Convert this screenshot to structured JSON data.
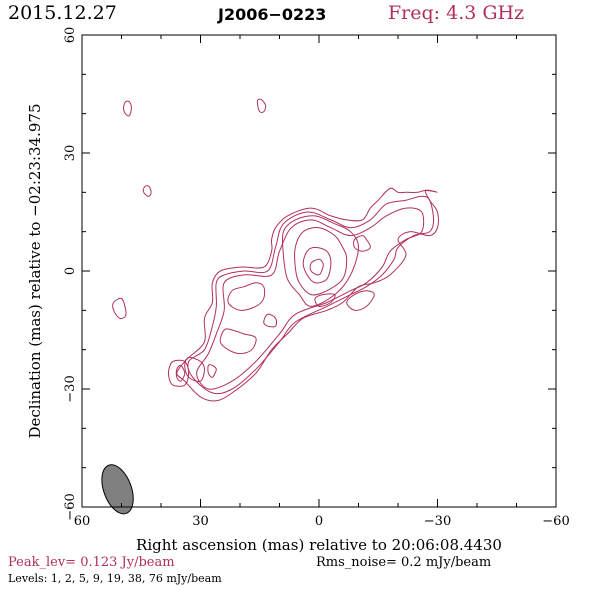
{
  "header": {
    "date": "2015.12.27",
    "source": "J2006−0223",
    "freq": "Freq: 4.3 GHz"
  },
  "footer": {
    "peak": "Peak_lev=  0.123 Jy/beam",
    "rms": "Rms_noise=   0.2  mJy/beam",
    "levels": "Levels:   1,   2,   5,   9,  19,  38,  76 mJy/beam"
  },
  "colors": {
    "contour": "#b0305a",
    "peak_text": "#b0305a",
    "freq_text": "#b0305a",
    "beam_fill": "#808080"
  },
  "chart_data": {
    "type": "contour",
    "xlabel": "Right ascension (mas) relative to 20:06:08.4430",
    "ylabel": "Declination (mas) relative to −02:23:34.975",
    "xlim": [
      60,
      -60
    ],
    "ylim": [
      -60,
      60
    ],
    "x_ticks": [
      60,
      30,
      0,
      -30,
      -60
    ],
    "y_ticks": [
      -60,
      -30,
      0,
      30,
      60
    ],
    "x_tick_labels": [
      "60",
      "30",
      "0",
      "−30",
      "−60"
    ],
    "y_tick_labels": [
      "−60",
      "−30",
      "0",
      "30",
      "60"
    ],
    "levels_mJy_per_beam": [
      1,
      2,
      5,
      9,
      19,
      38,
      76
    ],
    "peak_Jy_per_beam": 0.123,
    "rms_noise_mJy_per_beam": 0.2,
    "beam": {
      "x": 51,
      "y": -55.5,
      "major": 6.5,
      "minor": 3.5,
      "pa": 20
    },
    "contours": [
      {
        "name": "jet-outer",
        "points": [
          [
            -30,
            20
          ],
          [
            -27,
            20.5
          ],
          [
            -28,
            18
          ],
          [
            -30,
            15
          ],
          [
            -30,
            11
          ],
          [
            -28,
            9
          ],
          [
            -23,
            10
          ],
          [
            -20,
            8
          ],
          [
            -22,
            4
          ],
          [
            -18,
            -1
          ],
          [
            -14,
            -3
          ],
          [
            -10,
            -4
          ],
          [
            -6,
            -8
          ],
          [
            -2,
            -10
          ],
          [
            4,
            -12
          ],
          [
            8,
            -16
          ],
          [
            12,
            -20
          ],
          [
            16,
            -26
          ],
          [
            22,
            -31
          ],
          [
            26,
            -33
          ],
          [
            30,
            -32
          ],
          [
            34,
            -28
          ],
          [
            36,
            -26
          ],
          [
            34,
            -23
          ],
          [
            33,
            -22
          ],
          [
            29,
            -18
          ],
          [
            29,
            -12
          ],
          [
            27,
            -8
          ],
          [
            27,
            -3
          ],
          [
            25,
            0
          ],
          [
            20,
            1
          ],
          [
            14,
            1
          ],
          [
            12,
            5
          ],
          [
            12,
            8
          ],
          [
            11,
            11
          ],
          [
            8,
            14
          ],
          [
            2,
            16
          ],
          [
            -3,
            14
          ],
          [
            -7,
            13
          ],
          [
            -11,
            13
          ],
          [
            -13,
            16
          ],
          [
            -15,
            18
          ],
          [
            -18,
            21
          ],
          [
            -20,
            20
          ],
          [
            -22,
            20
          ],
          [
            -25,
            20
          ],
          [
            -27,
            20.5
          ]
        ]
      },
      {
        "name": "jet-l2",
        "points": [
          [
            -28,
            18
          ],
          [
            -29,
            13
          ],
          [
            -28,
            10
          ],
          [
            -24,
            9
          ],
          [
            -20,
            6
          ],
          [
            -19,
            3
          ],
          [
            -16,
            -1
          ],
          [
            -12,
            -4
          ],
          [
            -8,
            -6
          ],
          [
            -2,
            -9
          ],
          [
            6,
            -13
          ],
          [
            10,
            -18
          ],
          [
            16,
            -25
          ],
          [
            22,
            -30
          ],
          [
            27,
            -31
          ],
          [
            32,
            -27
          ],
          [
            33,
            -23
          ],
          [
            29,
            -20
          ],
          [
            27,
            -14
          ],
          [
            26,
            -9
          ],
          [
            26,
            -3
          ],
          [
            24,
            -1
          ],
          [
            19,
            0
          ],
          [
            13,
            0
          ],
          [
            11,
            6
          ],
          [
            9,
            12
          ],
          [
            3,
            15
          ],
          [
            -3,
            13
          ],
          [
            -8,
            11
          ],
          [
            -13,
            13
          ],
          [
            -17,
            17
          ],
          [
            -22,
            18
          ],
          [
            -26,
            19
          ]
        ]
      },
      {
        "name": "jet-l3",
        "points": [
          [
            -26,
            15
          ],
          [
            -26,
            10
          ],
          [
            -22,
            8
          ],
          [
            -18,
            5
          ],
          [
            -16,
            1
          ],
          [
            -12,
            -3
          ],
          [
            -8,
            -5
          ],
          [
            -2,
            -8
          ],
          [
            6,
            -11
          ],
          [
            10,
            -16
          ],
          [
            16,
            -23
          ],
          [
            22,
            -28
          ],
          [
            28,
            -30
          ],
          [
            31,
            -26
          ],
          [
            28,
            -21
          ],
          [
            26,
            -16
          ],
          [
            24,
            -10
          ],
          [
            24,
            -3
          ],
          [
            19,
            -1
          ],
          [
            12,
            -1
          ],
          [
            10,
            5
          ],
          [
            7,
            11
          ],
          [
            2,
            13
          ],
          [
            -3,
            11
          ],
          [
            -8,
            9
          ],
          [
            -13,
            11
          ],
          [
            -17,
            14
          ],
          [
            -22,
            16
          ]
        ]
      },
      {
        "name": "core-l4",
        "points": [
          [
            -10,
            6
          ],
          [
            -8,
            -1
          ],
          [
            -4,
            -6
          ],
          [
            2,
            -9
          ],
          [
            5,
            -6
          ],
          [
            8,
            -2
          ],
          [
            9,
            4
          ],
          [
            9,
            10
          ],
          [
            6,
            13
          ],
          [
            1,
            14
          ],
          [
            -4,
            12
          ],
          [
            -8,
            10
          ]
        ]
      },
      {
        "name": "core-l5",
        "points": [
          [
            -7,
            3
          ],
          [
            -6,
            -2
          ],
          [
            -2,
            -5
          ],
          [
            2,
            -6
          ],
          [
            5,
            -3
          ],
          [
            6,
            1
          ],
          [
            6,
            6
          ],
          [
            4,
            10
          ],
          [
            0,
            11
          ],
          [
            -4,
            9
          ],
          [
            -6,
            6
          ]
        ]
      },
      {
        "name": "core-l6",
        "points": [
          [
            -3,
            2
          ],
          [
            -2,
            -2
          ],
          [
            1,
            -3
          ],
          [
            3,
            -1
          ],
          [
            4,
            2
          ],
          [
            3,
            5
          ],
          [
            1,
            6
          ],
          [
            -2,
            5
          ]
        ]
      },
      {
        "name": "core-l7",
        "points": [
          [
            -1,
            1
          ],
          [
            0,
            -1
          ],
          [
            2,
            0
          ],
          [
            2,
            2
          ],
          [
            0,
            3
          ],
          [
            -1,
            2
          ]
        ]
      },
      {
        "name": "blob-east-core",
        "points": [
          [
            -12,
            8
          ],
          [
            -13,
            6
          ],
          [
            -11,
            5
          ],
          [
            -9,
            6
          ],
          [
            -9,
            8
          ],
          [
            -11,
            9
          ]
        ]
      },
      {
        "name": "inner-lobe-a",
        "points": [
          [
            22,
            -5
          ],
          [
            23,
            -8
          ],
          [
            20,
            -10
          ],
          [
            16,
            -9
          ],
          [
            14,
            -7
          ],
          [
            14,
            -4
          ],
          [
            16,
            -3
          ],
          [
            19,
            -4
          ]
        ]
      },
      {
        "name": "inner-lobe-b",
        "points": [
          [
            24,
            -15
          ],
          [
            25,
            -18
          ],
          [
            23,
            -20
          ],
          [
            20,
            -21
          ],
          [
            17,
            -20
          ],
          [
            16,
            -17
          ],
          [
            19,
            -16
          ],
          [
            22,
            -15
          ]
        ]
      },
      {
        "name": "inner-lobe-c",
        "points": [
          [
            13,
            -14
          ],
          [
            14,
            -13
          ],
          [
            13,
            -11
          ],
          [
            11,
            -12
          ],
          [
            11,
            -14
          ]
        ]
      },
      {
        "name": "inner-lobe-d",
        "points": [
          [
            33,
            -22
          ],
          [
            34,
            -24
          ],
          [
            33,
            -27
          ],
          [
            30,
            -28
          ],
          [
            29,
            -25
          ],
          [
            30,
            -23
          ]
        ]
      },
      {
        "name": "inner-lobe-e",
        "points": [
          [
            28,
            -24
          ],
          [
            28,
            -26
          ],
          [
            27,
            -27
          ],
          [
            26,
            -25
          ],
          [
            27,
            -24
          ]
        ]
      },
      {
        "name": "inner-lobe-f",
        "points": [
          [
            -4,
            -6
          ],
          [
            -3,
            -8
          ],
          [
            0,
            -9
          ],
          [
            1,
            -7
          ],
          [
            -1,
            -6
          ]
        ]
      },
      {
        "name": "blob-lower-left",
        "points": [
          [
            38,
            -25
          ],
          [
            37,
            -23
          ],
          [
            34,
            -23
          ],
          [
            33,
            -26
          ],
          [
            34,
            -29
          ],
          [
            37,
            -29
          ],
          [
            38,
            -27
          ]
        ]
      },
      {
        "name": "blob-lower-left-inner",
        "points": [
          [
            36,
            -25
          ],
          [
            35,
            -24
          ],
          [
            34,
            -26
          ],
          [
            35,
            -28
          ],
          [
            36,
            -27
          ]
        ]
      },
      {
        "name": "blob-west",
        "points": [
          [
            -14,
            -6
          ],
          [
            -12,
            -9
          ],
          [
            -9,
            -10
          ],
          [
            -7,
            -8
          ],
          [
            -9,
            -6
          ],
          [
            -12,
            -5
          ]
        ]
      },
      {
        "name": "isolated-1",
        "points": [
          [
            49,
            43
          ],
          [
            48,
            43
          ],
          [
            47.5,
            41.5
          ],
          [
            48,
            39.5
          ],
          [
            49,
            40
          ],
          [
            49.5,
            41.5
          ]
        ]
      },
      {
        "name": "isolated-2",
        "points": [
          [
            15.5,
            43.5
          ],
          [
            14.5,
            43.5
          ],
          [
            13.5,
            42
          ],
          [
            14,
            40.5
          ],
          [
            15,
            40.5
          ],
          [
            15.5,
            42
          ]
        ]
      },
      {
        "name": "isolated-3",
        "points": [
          [
            44,
            21.5
          ],
          [
            43,
            21.5
          ],
          [
            42.5,
            20
          ],
          [
            43,
            19
          ],
          [
            44,
            19.5
          ],
          [
            44.5,
            20.5
          ]
        ]
      },
      {
        "name": "isolated-4",
        "points": [
          [
            52,
            -8
          ],
          [
            50,
            -7
          ],
          [
            49,
            -9.5
          ],
          [
            49,
            -11.5
          ],
          [
            50.5,
            -12
          ],
          [
            52,
            -10
          ]
        ]
      }
    ]
  }
}
